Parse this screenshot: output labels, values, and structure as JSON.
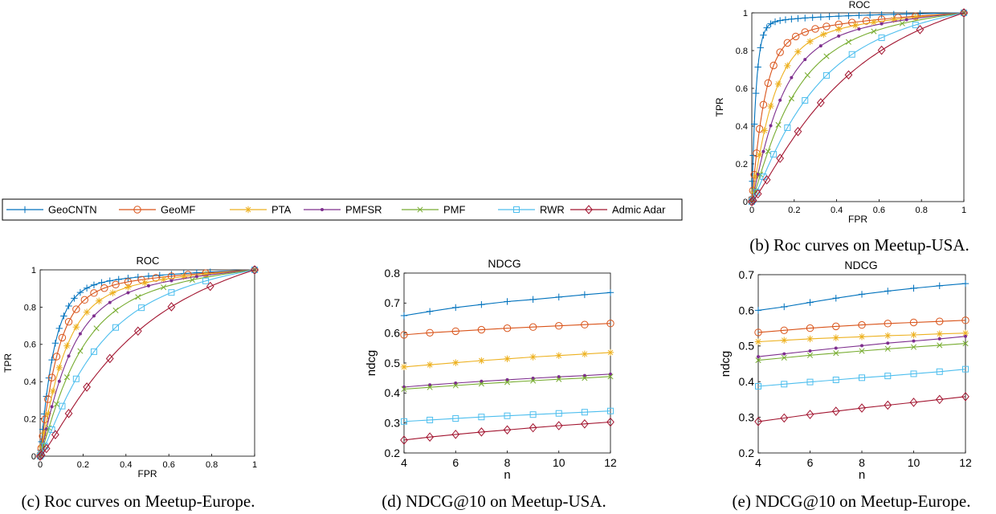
{
  "legend": {
    "entries": [
      {
        "name": "GeoCNTN",
        "color": "#0072BD",
        "marker": "plus"
      },
      {
        "name": "GeoMF",
        "color": "#D95319",
        "marker": "circle"
      },
      {
        "name": "PTA",
        "color": "#EDB120",
        "marker": "star"
      },
      {
        "name": "PMFSR",
        "color": "#7E2F8E",
        "marker": "dot"
      },
      {
        "name": "PMF",
        "color": "#77AC30",
        "marker": "x"
      },
      {
        "name": "RWR",
        "color": "#4DBEEE",
        "marker": "square"
      },
      {
        "name": "Admic Adar",
        "color": "#A2142F",
        "marker": "diamond"
      }
    ]
  },
  "captions": {
    "b": "(b) Roc curves on Meetup-USA.",
    "c": "(c) Roc curves on Meetup-Europe.",
    "d": "(d) NDCG@10 on Meetup-USA.",
    "e": "(e) NDCG@10 on Meetup-Europe."
  },
  "chart_data": [
    {
      "id": "b",
      "type": "line",
      "title": "ROC",
      "xlabel": "FPR",
      "ylabel": "TPR",
      "xlim": [
        0,
        1
      ],
      "ylim": [
        0,
        1
      ],
      "xticks": [
        "0",
        "0.2",
        "0.4",
        "0.6",
        "0.8",
        "1"
      ],
      "yticks": [
        "0",
        "0.2",
        "0.4",
        "0.6",
        "0.8",
        "1"
      ],
      "roc_shape": [
        0.02,
        0.055,
        0.09,
        0.12,
        0.16,
        0.22,
        0.3
      ],
      "series": [
        {
          "name": "GeoCNTN",
          "auc": 0.98
        },
        {
          "name": "GeoMF",
          "auc": 0.93
        },
        {
          "name": "PTA",
          "auc": 0.91
        },
        {
          "name": "PMFSR",
          "auc": 0.89
        },
        {
          "name": "PMF",
          "auc": 0.86
        },
        {
          "name": "RWR",
          "auc": 0.82
        },
        {
          "name": "Admic Adar",
          "auc": 0.76
        }
      ]
    },
    {
      "id": "c",
      "type": "line",
      "title": "ROC",
      "xlabel": "FPR",
      "ylabel": "TPR",
      "xlim": [
        0,
        1
      ],
      "ylim": [
        0,
        1
      ],
      "xticks": [
        "0",
        "0.2",
        "0.4",
        "0.6",
        "0.8",
        "1"
      ],
      "yticks": [
        "0",
        "0.2",
        "0.4",
        "0.6",
        "0.8",
        "1"
      ],
      "roc_shape": [
        0.06,
        0.075,
        0.1,
        0.12,
        0.15,
        0.2,
        0.3
      ],
      "series": [
        {
          "name": "GeoCNTN",
          "auc": 0.95
        },
        {
          "name": "GeoMF",
          "auc": 0.93
        },
        {
          "name": "PTA",
          "auc": 0.91
        },
        {
          "name": "PMFSR",
          "auc": 0.89
        },
        {
          "name": "PMF",
          "auc": 0.86
        },
        {
          "name": "RWR",
          "auc": 0.82
        },
        {
          "name": "Admic Adar",
          "auc": 0.76
        }
      ]
    },
    {
      "id": "d",
      "type": "line",
      "title": "NDCG",
      "xlabel": "n",
      "ylabel": "ndcg",
      "xlim": [
        4,
        12
      ],
      "ylim": [
        0.2,
        0.8
      ],
      "xticks": [
        "4",
        "6",
        "8",
        "10",
        "12"
      ],
      "yticks": [
        "0.2",
        "0.3",
        "0.4",
        "0.5",
        "0.6",
        "0.7",
        "0.8"
      ],
      "x": [
        4,
        5,
        6,
        7,
        8,
        9,
        10,
        11,
        12
      ],
      "series": [
        {
          "name": "GeoCNTN",
          "values": [
            0.658,
            0.672,
            0.685,
            0.695,
            0.705,
            0.712,
            0.72,
            0.728,
            0.735
          ]
        },
        {
          "name": "GeoMF",
          "values": [
            0.594,
            0.601,
            0.606,
            0.611,
            0.616,
            0.62,
            0.624,
            0.628,
            0.632
          ]
        },
        {
          "name": "PTA",
          "values": [
            0.487,
            0.494,
            0.501,
            0.508,
            0.514,
            0.52,
            0.525,
            0.53,
            0.535
          ]
        },
        {
          "name": "PMFSR",
          "values": [
            0.42,
            0.427,
            0.433,
            0.439,
            0.444,
            0.449,
            0.454,
            0.458,
            0.463
          ]
        },
        {
          "name": "PMF",
          "values": [
            0.413,
            0.419,
            0.425,
            0.431,
            0.436,
            0.441,
            0.446,
            0.45,
            0.455
          ]
        },
        {
          "name": "RWR",
          "values": [
            0.305,
            0.31,
            0.315,
            0.32,
            0.324,
            0.328,
            0.332,
            0.336,
            0.34
          ]
        },
        {
          "name": "Admic Adar",
          "values": [
            0.243,
            0.253,
            0.262,
            0.27,
            0.277,
            0.284,
            0.291,
            0.297,
            0.303
          ]
        }
      ]
    },
    {
      "id": "e",
      "type": "line",
      "title": "NDCG",
      "xlabel": "n",
      "ylabel": "ndcg",
      "xlim": [
        4,
        12
      ],
      "ylim": [
        0.2,
        0.7
      ],
      "xticks": [
        "4",
        "6",
        "8",
        "10",
        "12"
      ],
      "yticks": [
        "0.2",
        "0.3",
        "0.4",
        "0.5",
        "0.6",
        "0.7"
      ],
      "x": [
        4,
        5,
        6,
        7,
        8,
        9,
        10,
        11,
        12
      ],
      "series": [
        {
          "name": "GeoCNTN",
          "values": [
            0.6,
            0.61,
            0.622,
            0.634,
            0.645,
            0.654,
            0.662,
            0.669,
            0.675
          ]
        },
        {
          "name": "GeoMF",
          "values": [
            0.538,
            0.544,
            0.55,
            0.555,
            0.559,
            0.563,
            0.566,
            0.569,
            0.572
          ]
        },
        {
          "name": "PTA",
          "values": [
            0.512,
            0.516,
            0.52,
            0.523,
            0.526,
            0.529,
            0.531,
            0.534,
            0.536
          ]
        },
        {
          "name": "PMFSR",
          "values": [
            0.47,
            0.478,
            0.486,
            0.494,
            0.501,
            0.508,
            0.514,
            0.52,
            0.527
          ]
        },
        {
          "name": "PMF",
          "values": [
            0.46,
            0.467,
            0.474,
            0.48,
            0.486,
            0.492,
            0.497,
            0.502,
            0.507
          ]
        },
        {
          "name": "RWR",
          "values": [
            0.387,
            0.393,
            0.399,
            0.405,
            0.411,
            0.416,
            0.422,
            0.428,
            0.435
          ]
        },
        {
          "name": "Admic Adar",
          "values": [
            0.288,
            0.298,
            0.308,
            0.317,
            0.326,
            0.334,
            0.342,
            0.35,
            0.358
          ]
        }
      ]
    }
  ]
}
